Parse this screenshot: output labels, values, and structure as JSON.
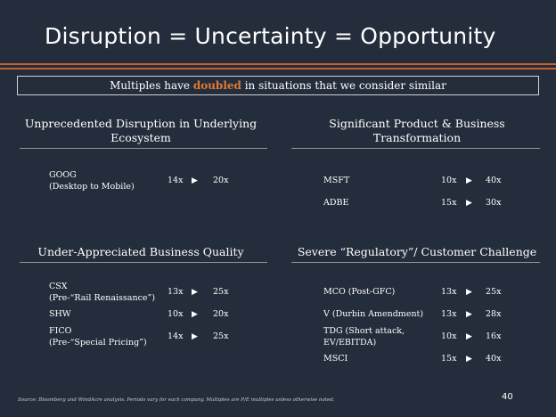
{
  "slide": {
    "title": "Disruption = Uncertainty = Opportunity",
    "callout": {
      "before": "Multiples have ",
      "highlight": "doubled",
      "after": " in situations that we consider similar"
    },
    "source_note": "Source: Bloomberg and WindAcre analysis. Periods vary for each company.  Multiples are P/E multiples unless otherwise noted.",
    "page_number": "40",
    "accent_color": "#c8622a",
    "background_color": "#242d3b",
    "arrow_icon": "play-triangle-icon"
  },
  "sections": [
    {
      "title_line1": "Unprecedented Disruption in Underlying",
      "title_line2": "Ecosystem",
      "rows": [
        {
          "label1": "GOOG",
          "label2": "(Desktop to Mobile)",
          "from": "14x",
          "to": "20x"
        }
      ]
    },
    {
      "title_line1": "Significant Product & Business",
      "title_line2": "Transformation",
      "rows": [
        {
          "label1": "MSFT",
          "label2": "",
          "from": "10x",
          "to": "40x"
        },
        {
          "label1": "ADBE",
          "label2": "",
          "from": "15x",
          "to": "30x"
        }
      ]
    },
    {
      "title_line1": "Under-Appreciated Business Quality",
      "title_line2": "",
      "rows": [
        {
          "label1": "CSX",
          "label2": "(Pre-“Rail Renaissance”)",
          "from": "13x",
          "to": "25x"
        },
        {
          "label1": "SHW",
          "label2": "",
          "from": "10x",
          "to": "20x"
        },
        {
          "label1": "FICO",
          "label2": "(Pre-“Special Pricing”)",
          "from": "14x",
          "to": "25x"
        }
      ]
    },
    {
      "title_line1": "Severe “Regulatory”/ Customer Challenge",
      "title_line2": "",
      "rows": [
        {
          "label1": "MCO (Post-GFC)",
          "label2": "",
          "from": "13x",
          "to": "25x"
        },
        {
          "label1": "V (Durbin Amendment)",
          "label2": "",
          "from": "13x",
          "to": "28x"
        },
        {
          "label1": "TDG (Short attack,",
          "label2": "EV/EBITDA)",
          "from": "10x",
          "to": "16x"
        },
        {
          "label1": "MSCI",
          "label2": "",
          "from": "15x",
          "to": "40x"
        }
      ]
    }
  ]
}
